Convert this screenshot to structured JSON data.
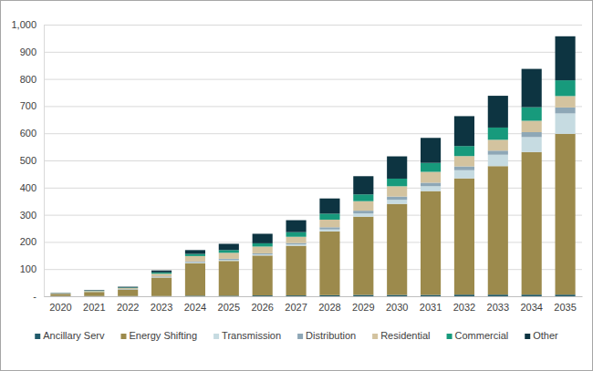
{
  "chart_data": {
    "type": "bar",
    "stacked": true,
    "grid": true,
    "legend": "bottom",
    "categories": [
      "2020",
      "2021",
      "2022",
      "2023",
      "2024",
      "2025",
      "2026",
      "2027",
      "2028",
      "2029",
      "2030",
      "2031",
      "2032",
      "2033",
      "2034",
      "2035"
    ],
    "ylim": [
      0,
      1000
    ],
    "yticks": [
      {
        "value": 0,
        "label": "-"
      },
      100,
      200,
      300,
      400,
      500,
      600,
      700,
      800,
      900,
      {
        "value": 1000,
        "label": "1,000"
      }
    ],
    "series": [
      {
        "name": "Ancillary Serv",
        "color": "#215b6b",
        "values": [
          1,
          1,
          1,
          1,
          2,
          2,
          3,
          3,
          4,
          5,
          5,
          5,
          6,
          6,
          6,
          6
        ]
      },
      {
        "name": "Energy Shifting",
        "color": "#9c8a4c",
        "values": [
          8,
          15,
          24,
          68,
          120,
          128,
          147,
          183,
          235,
          288,
          335,
          382,
          428,
          473,
          525,
          592
        ]
      },
      {
        "name": "Transmission",
        "color": "#c6dbe1",
        "values": [
          0.5,
          1,
          1,
          2,
          3,
          4,
          4,
          5,
          7,
          12,
          15,
          18,
          30,
          42,
          55,
          75
        ]
      },
      {
        "name": "Distribution",
        "color": "#8ea7b6",
        "values": [
          0.5,
          0.5,
          1,
          2,
          3,
          4,
          4,
          5,
          8,
          10,
          12,
          13,
          14,
          15,
          18,
          22
        ]
      },
      {
        "name": "Residential",
        "color": "#d3c39f",
        "values": [
          1,
          2,
          3,
          10,
          20,
          22,
          25,
          23,
          28,
          35,
          38,
          40,
          38,
          40,
          42,
          42
        ]
      },
      {
        "name": "Commercial",
        "color": "#179a7c",
        "values": [
          0.5,
          1,
          2,
          5,
          8,
          10,
          12,
          17,
          22,
          25,
          28,
          33,
          37,
          45,
          50,
          58
        ]
      },
      {
        "name": "Other",
        "color": "#0d3441",
        "values": [
          1,
          2,
          3,
          7,
          14,
          23,
          35,
          44,
          56,
          67,
          82,
          92,
          110,
          117,
          141,
          162
        ]
      }
    ]
  }
}
